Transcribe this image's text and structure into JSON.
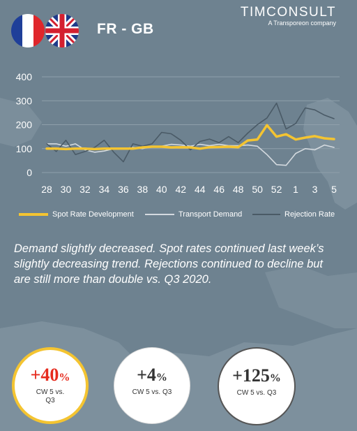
{
  "header": {
    "route": "FR - GB",
    "brand_name": "TIMCONSULT",
    "brand_tagline": "A Transporeon company",
    "flags": [
      "france-flag-icon",
      "united-kingdom-flag-icon"
    ]
  },
  "colors": {
    "spot": "#f4c431",
    "demand": "#d4dadf",
    "rejection": "#4a5a66",
    "kpi_positive": "#e62b1e"
  },
  "chart_data": {
    "type": "line",
    "title": "",
    "xlabel": "",
    "ylabel": "",
    "ylim": [
      0,
      400
    ],
    "yticks": [
      0,
      100,
      200,
      300,
      400
    ],
    "grid": true,
    "legend_position": "bottom",
    "x": [
      "28",
      "29",
      "30",
      "31",
      "32",
      "33",
      "34",
      "35",
      "36",
      "37",
      "38",
      "39",
      "40",
      "41",
      "42",
      "43",
      "44",
      "45",
      "46",
      "47",
      "48",
      "49",
      "50",
      "51",
      "52",
      "53",
      "1",
      "2",
      "3",
      "4",
      "5"
    ],
    "xtick_labels": [
      "28",
      "30",
      "32",
      "34",
      "36",
      "38",
      "40",
      "42",
      "44",
      "46",
      "48",
      "50",
      "52",
      "1",
      "3",
      "5"
    ],
    "series": [
      {
        "name": "Spot Rate Development",
        "values": [
          100,
          100,
          98,
          100,
          100,
          98,
          100,
          100,
          100,
          100,
          105,
          108,
          108,
          105,
          106,
          105,
          100,
          106,
          107,
          108,
          106,
          134,
          138,
          198,
          150,
          160,
          138,
          146,
          152,
          143,
          140
        ]
      },
      {
        "name": "Transport Demand",
        "values": [
          120,
          120,
          110,
          120,
          95,
          85,
          90,
          100,
          100,
          105,
          100,
          110,
          110,
          118,
          115,
          110,
          118,
          112,
          118,
          112,
          112,
          115,
          110,
          75,
          33,
          30,
          80,
          100,
          95,
          115,
          105
        ]
      },
      {
        "name": "Rejection Rate",
        "values": [
          120,
          88,
          135,
          75,
          88,
          105,
          135,
          85,
          45,
          120,
          110,
          120,
          168,
          162,
          135,
          95,
          130,
          140,
          125,
          150,
          125,
          165,
          200,
          228,
          290,
          182,
          205,
          270,
          262,
          240,
          225
        ]
      }
    ]
  },
  "summary": "Demand slightly decreased. Spot rates continued last week’s slightly decreasing trend. Rejections continued to decline but are still more than double vs. Q3 2020.",
  "kpis": [
    {
      "value": "+40",
      "unit": "%",
      "label": "CW 5 vs. Q3"
    },
    {
      "value": "+4",
      "unit": "%",
      "label": "CW 5 vs. Q3"
    },
    {
      "value": "+125",
      "unit": "%",
      "label": "CW 5 vs. Q3"
    }
  ]
}
